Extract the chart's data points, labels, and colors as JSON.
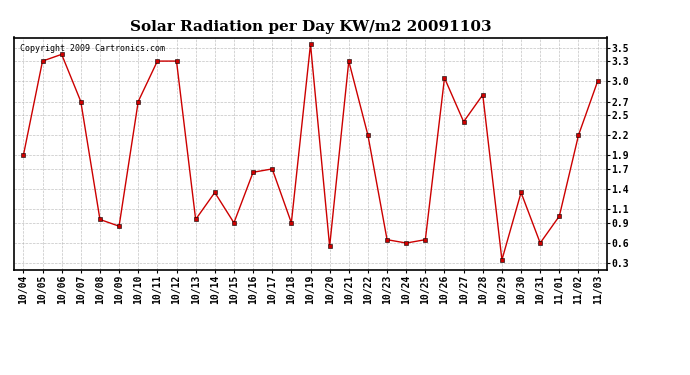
{
  "title": "Solar Radiation per Day KW/m2 20091103",
  "copyright_text": "Copyright 2009 Cartronics.com",
  "labels": [
    "10/04",
    "10/05",
    "10/06",
    "10/07",
    "10/08",
    "10/09",
    "10/10",
    "10/11",
    "10/12",
    "10/13",
    "10/14",
    "10/15",
    "10/16",
    "10/17",
    "10/18",
    "10/19",
    "10/20",
    "10/21",
    "10/22",
    "10/23",
    "10/24",
    "10/25",
    "10/26",
    "10/27",
    "10/28",
    "10/29",
    "10/30",
    "10/31",
    "11/01",
    "11/02",
    "11/03"
  ],
  "values": [
    1.9,
    3.3,
    3.4,
    2.7,
    0.95,
    0.85,
    2.7,
    3.3,
    3.3,
    0.95,
    1.35,
    0.9,
    1.65,
    1.7,
    0.9,
    3.55,
    0.55,
    3.3,
    2.2,
    0.65,
    0.6,
    0.65,
    3.05,
    2.4,
    2.8,
    0.35,
    1.35,
    0.6,
    1.0,
    2.2,
    3.0
  ],
  "line_color": "#cc0000",
  "marker": "s",
  "marker_size": 3,
  "bg_color": "#ffffff",
  "grid_color": "#aaaaaa",
  "ylim_min": 0.2,
  "ylim_max": 3.65,
  "yticks": [
    0.3,
    0.6,
    0.9,
    1.1,
    1.4,
    1.7,
    1.9,
    2.2,
    2.5,
    2.7,
    3.0,
    3.3,
    3.5
  ],
  "title_fontsize": 11,
  "tick_fontsize": 7,
  "fig_width": 6.9,
  "fig_height": 3.75,
  "dpi": 100
}
